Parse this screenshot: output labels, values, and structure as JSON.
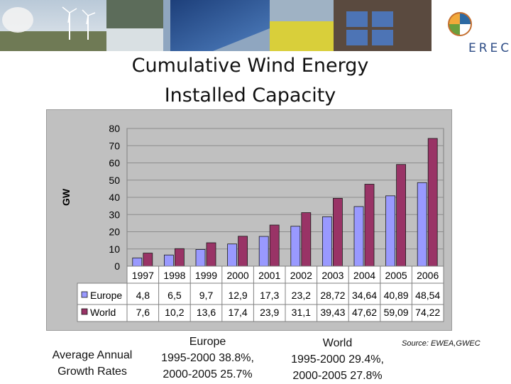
{
  "title_line1": "Cumulative Wind Energy",
  "title_line2": "Installed Capacity",
  "logo_text": "EREC",
  "chart_data": {
    "type": "bar",
    "ylabel": "GW",
    "ylim": [
      0,
      80
    ],
    "yticks": [
      "0",
      "10",
      "20",
      "30",
      "40",
      "50",
      "60",
      "70",
      "80"
    ],
    "grid": true,
    "categories": [
      "1997",
      "1998",
      "1999",
      "2000",
      "2001",
      "2002",
      "2003",
      "2004",
      "2005",
      "2006"
    ],
    "series": [
      {
        "name": "Europe",
        "color": "#9999ff",
        "values": [
          4.8,
          6.5,
          9.7,
          12.9,
          17.3,
          23.2,
          28.72,
          34.64,
          40.89,
          48.54
        ],
        "labels": [
          "4,8",
          "6,5",
          "9,7",
          "12,9",
          "17,3",
          "23,2",
          "28,72",
          "34,64",
          "40,89",
          "48,54"
        ]
      },
      {
        "name": "World",
        "color": "#993366",
        "values": [
          7.6,
          10.2,
          13.6,
          17.4,
          23.9,
          31.1,
          39.43,
          47.62,
          59.09,
          74.22
        ],
        "labels": [
          "7,6",
          "10,2",
          "13,6",
          "17,4",
          "23,9",
          "31,1",
          "39,43",
          "47,62",
          "59,09",
          "74,22"
        ]
      }
    ]
  },
  "footer": {
    "avg_label_1": "Average Annual",
    "avg_label_2": "Growth Rates",
    "europe_title": "Europe",
    "europe_r1": "1995-2000 38.8%,",
    "europe_r2": "2000-2005 25.7%",
    "world_title": "World",
    "world_r1": "1995-2000 29.4%,",
    "world_r2": "2000-2005 27.8%",
    "source": "Source: EWEA,GWEC"
  }
}
